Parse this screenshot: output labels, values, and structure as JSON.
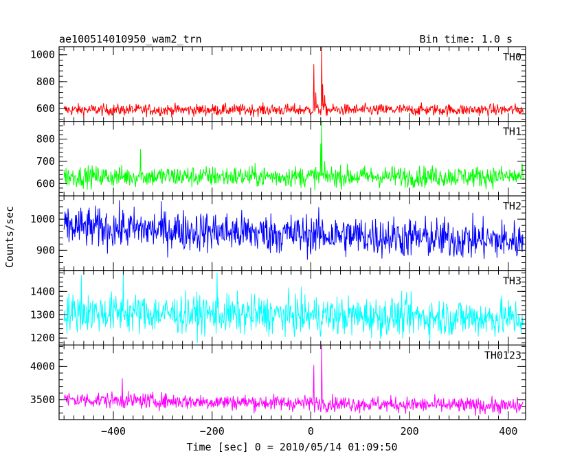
{
  "header": {
    "title": "ae100514010950_wam2_trn",
    "bin_time": "Bin time: 1.0 s"
  },
  "axes": {
    "xlabel": "Time [sec] 0 = 2010/05/14 01:09:50",
    "ylabel": "Counts/sec"
  },
  "chart_data": {
    "type": "line",
    "x_range": [
      -510,
      435
    ],
    "data_x_range": [
      -500,
      430
    ],
    "bin_seconds": 1.0,
    "x_ticks": [
      -400,
      -200,
      0,
      200,
      400
    ],
    "grid": false,
    "panels": [
      {
        "name": "TH0",
        "color": "#ff0000",
        "ylim": [
          505,
          1060
        ],
        "y_ticks": [
          600,
          800,
          1000
        ],
        "baseline": 590,
        "noise": 22,
        "trend": [],
        "peaks": [
          {
            "x": 6,
            "y": 930
          },
          {
            "x": 10,
            "y": 720
          },
          {
            "x": 22,
            "y": 1060
          },
          {
            "x": 24,
            "y": 780
          },
          {
            "x": 28,
            "y": 700
          }
        ],
        "min_observed": 505,
        "max_observed": 1060
      },
      {
        "name": "TH1",
        "color": "#00ff00",
        "ylim": [
          545,
          880
        ],
        "y_ticks": [
          600,
          700,
          800
        ],
        "baseline": 632,
        "noise": 24,
        "trend": [],
        "peaks": [
          {
            "x": 22,
            "y": 880
          },
          {
            "x": 20,
            "y": 780
          },
          {
            "x": -345,
            "y": 755
          }
        ],
        "min_observed": 545,
        "max_observed": 880
      },
      {
        "name": "TH2",
        "color": "#0000ff",
        "ylim": [
          835,
          1075
        ],
        "y_ticks": [
          900,
          1000
        ],
        "baseline": 975,
        "baseline_end": 930,
        "noise": 33,
        "trend": [],
        "peaks": [],
        "min_observed": 835,
        "max_observed": 1075
      },
      {
        "name": "TH3",
        "color": "#00ffff",
        "ylim": [
          1170,
          1490
        ],
        "y_ticks": [
          1200,
          1300,
          1400
        ],
        "baseline": 1310,
        "baseline_end": 1285,
        "noise": 42,
        "trend": [],
        "peaks": [
          {
            "x": -380,
            "y": 1490
          },
          {
            "x": -190,
            "y": 1480
          },
          {
            "x": -465,
            "y": 1470
          }
        ],
        "min_observed": 1170,
        "max_observed": 1490
      },
      {
        "name": "TH0123",
        "color": "#ff00ff",
        "ylim": [
          3200,
          4320
        ],
        "y_ticks": [
          3500,
          4000
        ],
        "baseline": 3500,
        "baseline_end": 3400,
        "noise": 60,
        "trend": [],
        "peaks": [
          {
            "x": 6,
            "y": 4020
          },
          {
            "x": 22,
            "y": 4320
          },
          {
            "x": -382,
            "y": 3820
          }
        ],
        "min_observed": 3200,
        "max_observed": 4320
      }
    ]
  }
}
